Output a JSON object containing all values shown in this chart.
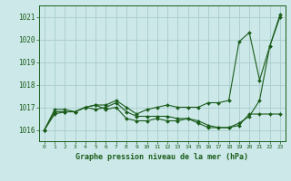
{
  "title": "Graphe pression niveau de la mer (hPa)",
  "background_color": "#cce8e8",
  "grid_color": "#aacccc",
  "line_color": "#1a5c1a",
  "xlim": [
    -0.5,
    23.5
  ],
  "ylim": [
    1015.5,
    1021.5
  ],
  "yticks": [
    1016,
    1017,
    1018,
    1019,
    1020,
    1021
  ],
  "xticks": [
    0,
    1,
    2,
    3,
    4,
    5,
    6,
    7,
    8,
    9,
    10,
    11,
    12,
    13,
    14,
    15,
    16,
    17,
    18,
    19,
    20,
    21,
    22,
    23
  ],
  "series": [
    [
      1016.0,
      1016.9,
      1016.9,
      1016.8,
      1017.0,
      1017.1,
      1017.1,
      1017.3,
      1017.0,
      1016.7,
      1016.9,
      1017.0,
      1017.1,
      1017.0,
      1017.0,
      1017.0,
      1017.2,
      1017.2,
      1017.3,
      1019.9,
      1020.3,
      1018.2,
      1019.7,
      1021.1
    ],
    [
      1016.0,
      1016.7,
      1016.8,
      1016.8,
      1017.0,
      1017.1,
      1016.9,
      1017.0,
      1016.5,
      1016.4,
      1016.4,
      1016.5,
      1016.4,
      1016.4,
      1016.5,
      1016.4,
      1016.2,
      1016.1,
      1016.1,
      1016.2,
      1016.7,
      1016.7,
      1016.7,
      1016.7
    ],
    [
      1016.0,
      1016.8,
      1016.8,
      1016.8,
      1017.0,
      1016.9,
      1017.0,
      1017.2,
      1016.8,
      1016.6,
      1016.6,
      1016.6,
      1016.6,
      1016.5,
      1016.5,
      1016.3,
      1016.1,
      1016.1,
      1016.1,
      1016.3,
      1016.6,
      1017.3,
      1019.7,
      1021.0
    ]
  ]
}
